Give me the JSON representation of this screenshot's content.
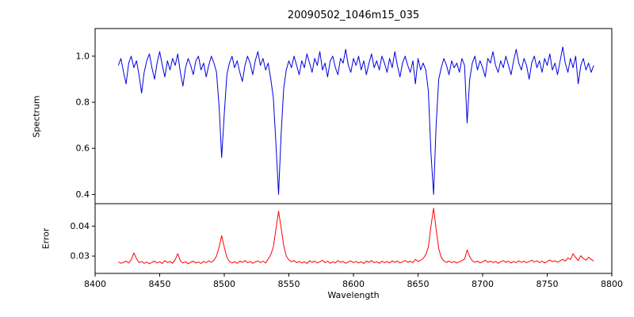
{
  "header": {
    "title": "20090502_1046m15_035"
  },
  "axes": {
    "xlabel": "Wavelength",
    "ylabel_top": "Spectrum",
    "ylabel_bottom": "Error",
    "xtick_labels": [
      "8400",
      "8450",
      "8500",
      "8550",
      "8600",
      "8650",
      "8700",
      "8750",
      "8800"
    ],
    "ytick_labels_top": [
      "1.0",
      "0.8",
      "0.6",
      "0.4"
    ],
    "ytick_labels_bottom": [
      "0.04",
      "0.03"
    ]
  },
  "colors": {
    "spectrum_line": "#0000dd",
    "error_line": "#ff0000",
    "axis": "#000000",
    "background": "#ffffff"
  },
  "chart_data": [
    {
      "type": "line",
      "series_name": "spectrum",
      "title": "20090502_1046m15_035",
      "xlabel": "Wavelength",
      "ylabel": "Spectrum",
      "xlim": [
        8400,
        8800
      ],
      "ylim": [
        0.36,
        1.12
      ],
      "xticks": [
        8400,
        8450,
        8500,
        8550,
        8600,
        8650,
        8700,
        8750,
        8800
      ],
      "yticks": [
        1.0,
        0.8,
        0.6,
        0.4
      ],
      "line_color": "#0000dd",
      "grid": false,
      "legend": "none",
      "x_start": 8418,
      "x_step": 2,
      "absorption_line_centers": [
        8498,
        8542,
        8662,
        8688
      ],
      "values": [
        0.96,
        0.99,
        0.93,
        0.88,
        0.97,
        1.0,
        0.95,
        0.98,
        0.92,
        0.84,
        0.93,
        0.98,
        1.01,
        0.95,
        0.9,
        0.97,
        1.02,
        0.96,
        0.91,
        0.98,
        0.94,
        0.99,
        0.96,
        1.01,
        0.93,
        0.87,
        0.95,
        0.99,
        0.96,
        0.92,
        0.98,
        1.0,
        0.94,
        0.97,
        0.91,
        0.96,
        1.0,
        0.97,
        0.93,
        0.78,
        0.56,
        0.75,
        0.92,
        0.97,
        1.0,
        0.95,
        0.98,
        0.93,
        0.89,
        0.96,
        1.0,
        0.97,
        0.92,
        0.98,
        1.02,
        0.96,
        0.99,
        0.94,
        0.97,
        0.9,
        0.82,
        0.62,
        0.4,
        0.66,
        0.86,
        0.94,
        0.98,
        0.95,
        1.0,
        0.96,
        0.92,
        0.98,
        0.95,
        1.01,
        0.97,
        0.93,
        0.99,
        0.96,
        1.02,
        0.94,
        0.97,
        0.91,
        0.98,
        1.0,
        0.95,
        0.92,
        0.99,
        0.97,
        1.03,
        0.96,
        0.93,
        0.99,
        0.96,
        1.0,
        0.94,
        0.98,
        0.92,
        0.97,
        1.01,
        0.95,
        0.98,
        0.94,
        1.0,
        0.97,
        0.93,
        0.99,
        0.95,
        1.02,
        0.96,
        0.91,
        0.97,
        1.0,
        0.96,
        0.93,
        0.98,
        0.88,
        0.99,
        0.94,
        0.97,
        0.94,
        0.85,
        0.58,
        0.4,
        0.7,
        0.9,
        0.95,
        0.99,
        0.96,
        0.92,
        0.98,
        0.95,
        0.97,
        0.93,
        0.99,
        0.96,
        0.71,
        0.9,
        0.97,
        1.0,
        0.94,
        0.98,
        0.95,
        0.91,
        0.99,
        0.97,
        1.02,
        0.96,
        0.93,
        0.98,
        0.95,
        1.0,
        0.96,
        0.92,
        0.98,
        1.03,
        0.97,
        0.94,
        0.99,
        0.96,
        0.9,
        0.97,
        1.0,
        0.95,
        0.98,
        0.93,
        0.99,
        0.96,
        1.01,
        0.94,
        0.97,
        0.92,
        0.98,
        1.04,
        0.97,
        0.93,
        0.99,
        0.95,
        1.0,
        0.88,
        0.96,
        0.99,
        0.94,
        0.97,
        0.93,
        0.96
      ]
    },
    {
      "type": "line",
      "series_name": "error",
      "xlabel": "Wavelength",
      "ylabel": "Error",
      "xlim": [
        8400,
        8800
      ],
      "ylim": [
        0.0242,
        0.0475
      ],
      "xticks": [
        8400,
        8450,
        8500,
        8550,
        8600,
        8650,
        8700,
        8750,
        8800
      ],
      "yticks": [
        0.04,
        0.03
      ],
      "line_color": "#ff0000",
      "grid": false,
      "legend": "none",
      "x_start": 8418,
      "x_step": 2,
      "peak_centers": [
        8498,
        8542,
        8662,
        8688
      ],
      "values": [
        0.028,
        0.0276,
        0.0279,
        0.0283,
        0.0277,
        0.0288,
        0.031,
        0.0292,
        0.0278,
        0.0282,
        0.0276,
        0.028,
        0.0274,
        0.0279,
        0.0283,
        0.0277,
        0.0281,
        0.0275,
        0.0285,
        0.0278,
        0.0282,
        0.0276,
        0.0288,
        0.0308,
        0.0284,
        0.0277,
        0.0281,
        0.0274,
        0.0279,
        0.0283,
        0.0277,
        0.028,
        0.0275,
        0.0282,
        0.0278,
        0.0284,
        0.0279,
        0.0286,
        0.03,
        0.033,
        0.0368,
        0.033,
        0.0295,
        0.0282,
        0.0277,
        0.0281,
        0.0276,
        0.0283,
        0.0279,
        0.0285,
        0.0278,
        0.0282,
        0.0276,
        0.028,
        0.0284,
        0.0278,
        0.0283,
        0.0277,
        0.029,
        0.0305,
        0.033,
        0.039,
        0.045,
        0.0395,
        0.0335,
        0.03,
        0.0287,
        0.0281,
        0.0285,
        0.0278,
        0.0282,
        0.0277,
        0.0281,
        0.0275,
        0.0284,
        0.0279,
        0.0283,
        0.0277,
        0.0281,
        0.0286,
        0.0278,
        0.0283,
        0.0276,
        0.0281,
        0.0277,
        0.0285,
        0.0279,
        0.0282,
        0.0276,
        0.028,
        0.0284,
        0.0278,
        0.0282,
        0.0277,
        0.0281,
        0.0275,
        0.0283,
        0.0279,
        0.0285,
        0.0278,
        0.0281,
        0.0276,
        0.0283,
        0.0278,
        0.0282,
        0.0277,
        0.0284,
        0.0279,
        0.0283,
        0.0277,
        0.0281,
        0.0285,
        0.0279,
        0.0283,
        0.0278,
        0.0289,
        0.0282,
        0.0286,
        0.0292,
        0.0305,
        0.033,
        0.04,
        0.046,
        0.039,
        0.0325,
        0.0295,
        0.0284,
        0.0279,
        0.0283,
        0.0278,
        0.0282,
        0.0277,
        0.0281,
        0.0285,
        0.029,
        0.032,
        0.0298,
        0.0284,
        0.0279,
        0.0283,
        0.0277,
        0.0281,
        0.0286,
        0.0279,
        0.0283,
        0.0278,
        0.0282,
        0.0276,
        0.0281,
        0.0285,
        0.0279,
        0.0283,
        0.0277,
        0.0282,
        0.0278,
        0.0284,
        0.0279,
        0.0283,
        0.0278,
        0.0282,
        0.0286,
        0.028,
        0.0284,
        0.0278,
        0.0283,
        0.0277,
        0.0282,
        0.0287,
        0.0281,
        0.0285,
        0.0279,
        0.0284,
        0.0289,
        0.0283,
        0.0294,
        0.0288,
        0.0308,
        0.0295,
        0.0285,
        0.0301,
        0.0292,
        0.0286,
        0.0296,
        0.0289,
        0.0283
      ]
    }
  ]
}
